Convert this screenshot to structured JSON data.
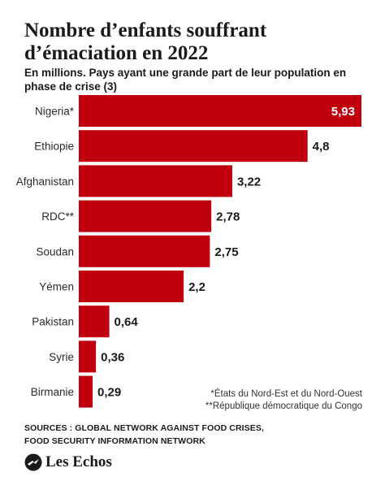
{
  "title": "Nombre d’enfants souffrant d’émaciation en 2022",
  "subtitle": "En millions. Pays ayant une grande part de leur population en phase de crise (3)",
  "chart_data": {
    "type": "bar",
    "orientation": "horizontal",
    "categories": [
      "Nigeria*",
      "Ethiopie",
      "Afghanistan",
      "RDC**",
      "Soudan",
      "Yémen",
      "Pakistan",
      "Syrie",
      "Birmanie"
    ],
    "values": [
      5.93,
      4.8,
      3.22,
      2.78,
      2.75,
      2.2,
      0.64,
      0.36,
      0.29
    ],
    "value_labels": [
      "5,93",
      "4,8",
      "3,22",
      "2,78",
      "2,75",
      "2,2",
      "0,64",
      "0,36",
      "0,29"
    ],
    "ylabel": "",
    "xlabel": "",
    "xlim": [
      0,
      5.93
    ],
    "grid": false,
    "bar_color": "#c1000f"
  },
  "notes": {
    "note1": "*États du Nord-Est et du Nord-Ouest",
    "note2": "**République démocratique du Congo"
  },
  "sources": {
    "line1": "SOURCES : GLOBAL NETWORK AGAINST FOOD CRISES,",
    "line2": "FOOD SECURITY INFORMATION NETWORK"
  },
  "logo": {
    "text": "Les Echos",
    "icon": "les-echos-logo-icon"
  }
}
